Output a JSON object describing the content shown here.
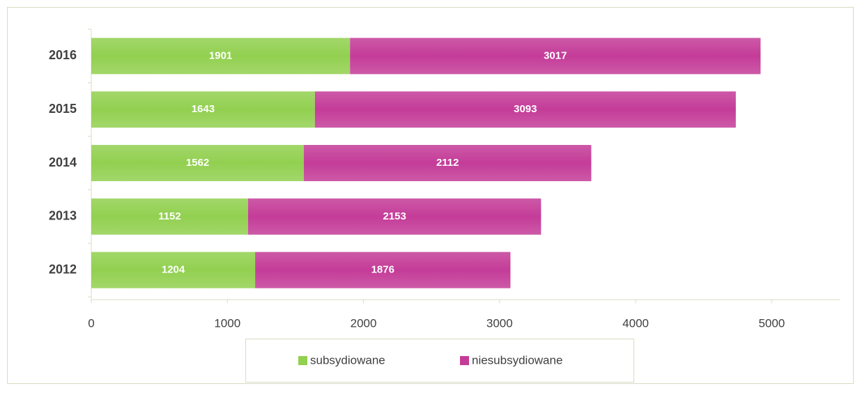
{
  "chart_data": {
    "type": "bar",
    "orientation": "horizontal",
    "stacked": true,
    "categories": [
      "2016",
      "2015",
      "2014",
      "2013",
      "2012"
    ],
    "series": [
      {
        "name": "subsydiowane",
        "color": "#92d050",
        "values": [
          1901,
          1643,
          1562,
          1152,
          1204
        ]
      },
      {
        "name": "niesubsydiowane",
        "color": "#c43c98",
        "values": [
          3017,
          3093,
          2112,
          2153,
          1876
        ]
      }
    ],
    "xlim": [
      0,
      5500
    ],
    "xticks": [
      0,
      1000,
      2000,
      3000,
      4000,
      5000
    ],
    "grid": false,
    "legend": "bottom"
  }
}
